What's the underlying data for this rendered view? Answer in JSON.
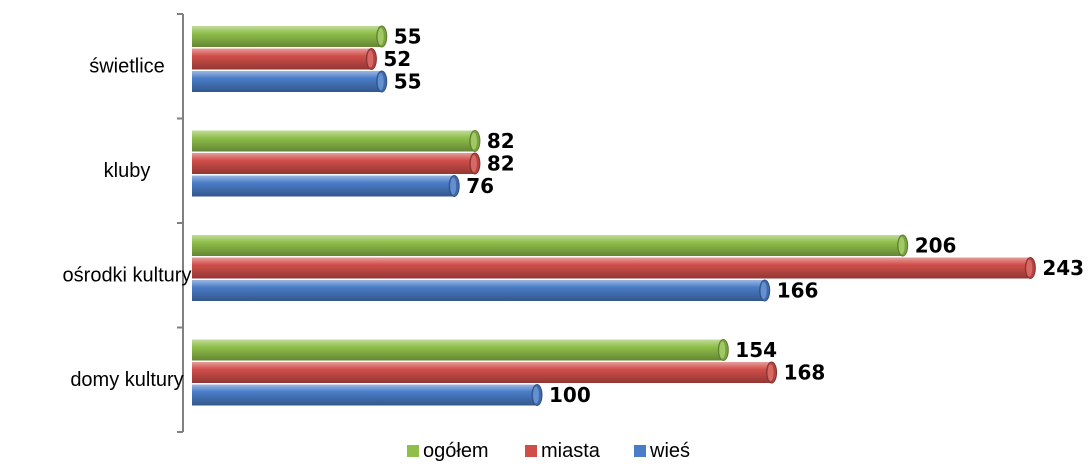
{
  "chart_data": {
    "type": "bar",
    "orientation": "horizontal",
    "categories": [
      "świetlice",
      "kluby",
      "ośrodki kultury",
      "domy kultury"
    ],
    "series": [
      {
        "name": "ogółem",
        "values": [
          55,
          82,
          206,
          154
        ],
        "color": "#8fbf4a"
      },
      {
        "name": "miasta",
        "values": [
          52,
          82,
          243,
          168
        ],
        "color": "#d04e4a"
      },
      {
        "name": "wieś",
        "values": [
          55,
          76,
          166,
          100
        ],
        "color": "#4a7cc8"
      }
    ],
    "xlim": [
      0,
      250
    ],
    "grid": false,
    "legend": "bottom-center"
  }
}
